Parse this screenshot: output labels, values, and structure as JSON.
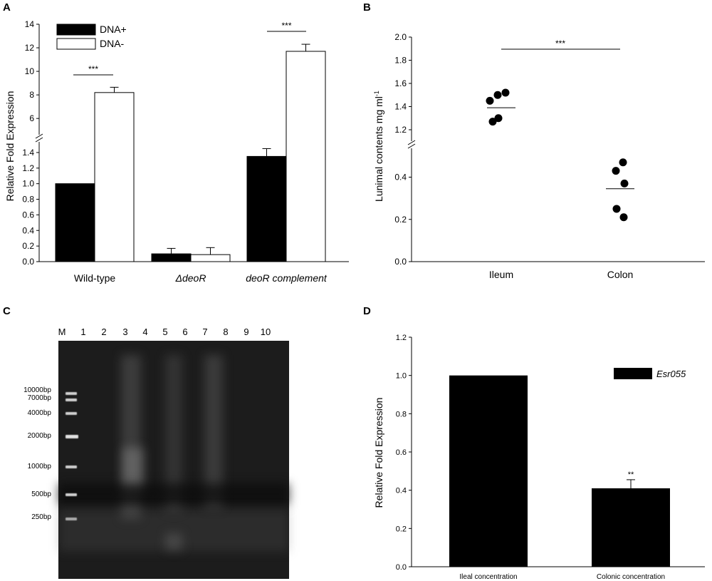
{
  "panel_letters": {
    "a": "A",
    "b": "B",
    "c": "C",
    "d": "D"
  },
  "chart_data": [
    {
      "panel": "A",
      "type": "bar",
      "ylabel": "Relative Fold Expression",
      "categories": [
        "Wild-type",
        "ΔdeoR",
        "deoR complement"
      ],
      "series": [
        {
          "name": "DNA+",
          "color": "#000000",
          "values": [
            1.0,
            0.1,
            1.35
          ],
          "errors": [
            0.0,
            0.07,
            0.1
          ]
        },
        {
          "name": "DNA-",
          "color": "#ffffff",
          "values": [
            8.2,
            0.09,
            11.7
          ],
          "errors": [
            0.45,
            0.09,
            0.6
          ]
        }
      ],
      "y_lower_ticks": [
        "0.0",
        "0.2",
        "0.4",
        "0.6",
        "0.8",
        "1.0",
        "1.2",
        "1.4"
      ],
      "y_upper_ticks": [
        "6",
        "8",
        "10",
        "12",
        "14"
      ],
      "ylim_lower": [
        0,
        1.5
      ],
      "ylim_upper": [
        4.8,
        14
      ],
      "significance": [
        "***",
        "***"
      ],
      "legend_position": "top-left",
      "broken_axis": true
    },
    {
      "panel": "B",
      "type": "scatter",
      "ylabel": "Lunimal contents mg ml",
      "ylabel_sup": "-1",
      "categories": [
        "Ileum",
        "Colon"
      ],
      "points": [
        {
          "group": "Ileum",
          "values": [
            1.5,
            1.52,
            1.45,
            1.3,
            1.27
          ]
        },
        {
          "group": "Colon",
          "values": [
            0.47,
            0.43,
            0.37,
            0.25,
            0.21
          ]
        }
      ],
      "means": [
        1.39,
        0.345
      ],
      "y_lower_ticks": [
        "0.0",
        "0.2",
        "0.4"
      ],
      "y_upper_ticks": [
        "1.2",
        "1.4",
        "1.6",
        "1.8",
        "2.0"
      ],
      "ylim_lower": [
        0,
        0.53
      ],
      "ylim_upper": [
        1.12,
        2.0
      ],
      "significance": "***",
      "broken_axis": true
    },
    {
      "panel": "D",
      "type": "bar",
      "ylabel": "Relative Fold Expression",
      "categories": [
        "Ileal concentration",
        "Colonic concentration"
      ],
      "series": [
        {
          "name": "Esr055",
          "color": "#000000",
          "values": [
            1.0,
            0.41
          ],
          "errors": [
            0.0,
            0.045
          ]
        }
      ],
      "y_ticks": [
        "0.0",
        "0.2",
        "0.4",
        "0.6",
        "0.8",
        "1.0",
        "1.2"
      ],
      "ylim": [
        0,
        1.2
      ],
      "significance": "**",
      "legend_position": "top-right"
    }
  ],
  "gel": {
    "lanes": [
      "M",
      "1",
      "2",
      "3",
      "4",
      "5",
      "6",
      "7",
      "8",
      "9",
      "10"
    ],
    "ladder_sizes": [
      "10000bp",
      "7000bp",
      "4000bp",
      "2000bp",
      "1000bp",
      "500bp",
      "250bp"
    ]
  }
}
